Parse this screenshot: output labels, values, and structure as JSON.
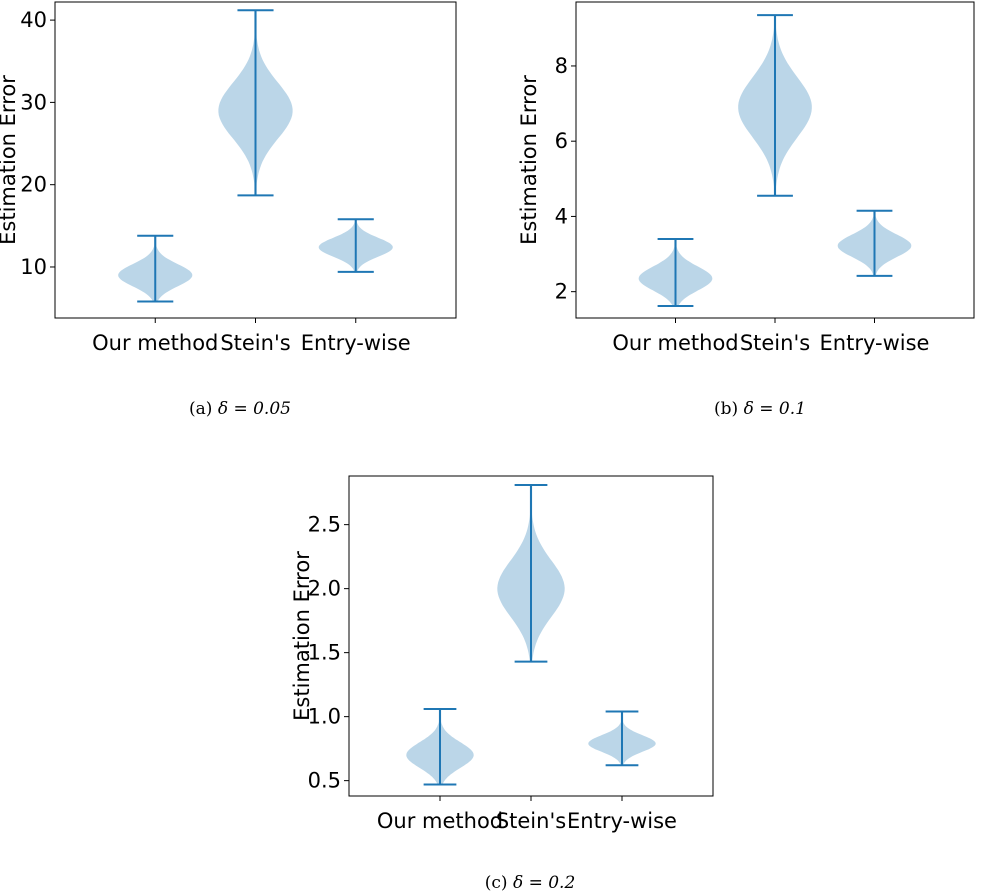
{
  "chart_data": [
    {
      "type": "violin",
      "ylabel": "Estimation Error",
      "categories": [
        "Our method",
        "Stein's",
        "Entry-wise"
      ],
      "yticks": [
        10,
        20,
        30,
        40
      ],
      "ylim": [
        3.8,
        42.2
      ],
      "caption_prefix": "(a)",
      "caption_math": "δ = 0.05",
      "violins": [
        {
          "min": 5.8,
          "max": 13.8,
          "mode": 9.0,
          "sd": 1.35
        },
        {
          "min": 18.7,
          "max": 41.2,
          "mode": 29.0,
          "sd": 3.4
        },
        {
          "min": 9.4,
          "max": 15.8,
          "mode": 12.4,
          "sd": 1.15
        }
      ]
    },
    {
      "type": "violin",
      "ylabel": "Estimation Error",
      "categories": [
        "Our method",
        "Stein's",
        "Entry-wise"
      ],
      "yticks": [
        2,
        4,
        6,
        8
      ],
      "ylim": [
        1.3,
        9.7
      ],
      "caption_prefix": "(b)",
      "caption_math": "δ = 0.1",
      "violins": [
        {
          "min": 1.62,
          "max": 3.4,
          "mode": 2.35,
          "sd": 0.32
        },
        {
          "min": 4.55,
          "max": 9.35,
          "mode": 6.9,
          "sd": 0.8
        },
        {
          "min": 2.42,
          "max": 4.15,
          "mode": 3.22,
          "sd": 0.3
        }
      ]
    },
    {
      "type": "violin",
      "ylabel": "Estimation Error",
      "categories": [
        "Our method",
        "Stein's",
        "Entry-wise"
      ],
      "yticks": [
        0.5,
        1.0,
        1.5,
        2.0,
        2.5
      ],
      "ylim": [
        0.38,
        2.88
      ],
      "caption_prefix": "(c)",
      "caption_math": "δ = 0.2",
      "violins": [
        {
          "min": 0.47,
          "max": 1.06,
          "mode": 0.7,
          "sd": 0.1
        },
        {
          "min": 1.43,
          "max": 2.81,
          "mode": 2.0,
          "sd": 0.22
        },
        {
          "min": 0.62,
          "max": 1.04,
          "mode": 0.79,
          "sd": 0.065
        }
      ]
    }
  ]
}
